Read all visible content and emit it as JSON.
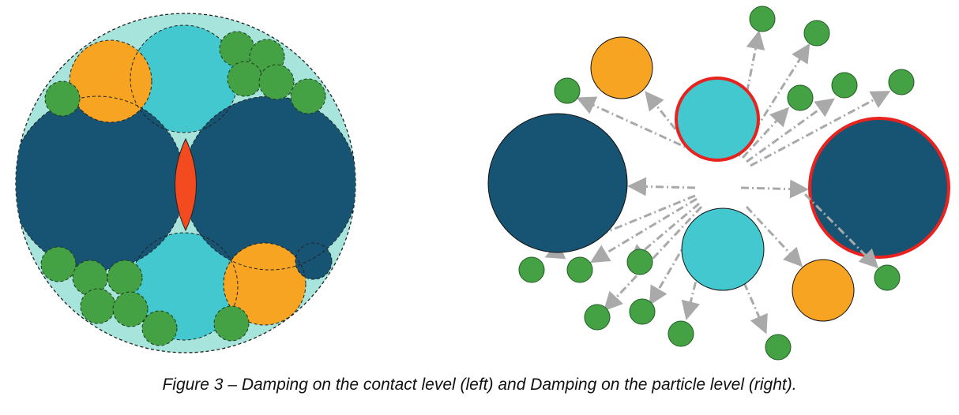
{
  "caption": "Figure 3 – Damping on the contact level (left) and Damping on the particle level (right).",
  "colors": {
    "dark": "#175373",
    "cyan": "#43c8d0",
    "orange": "#f7a423",
    "green": "#45a244",
    "green_stroke": "#1f5d22",
    "contact": "#f44a20",
    "boundary_fill": "#a7e4dc",
    "highlight_ring": "#e8221e",
    "arrow": "#a9a9a9"
  },
  "panels": [
    {
      "id": "contact-level"
    },
    {
      "id": "particle-level"
    }
  ]
}
